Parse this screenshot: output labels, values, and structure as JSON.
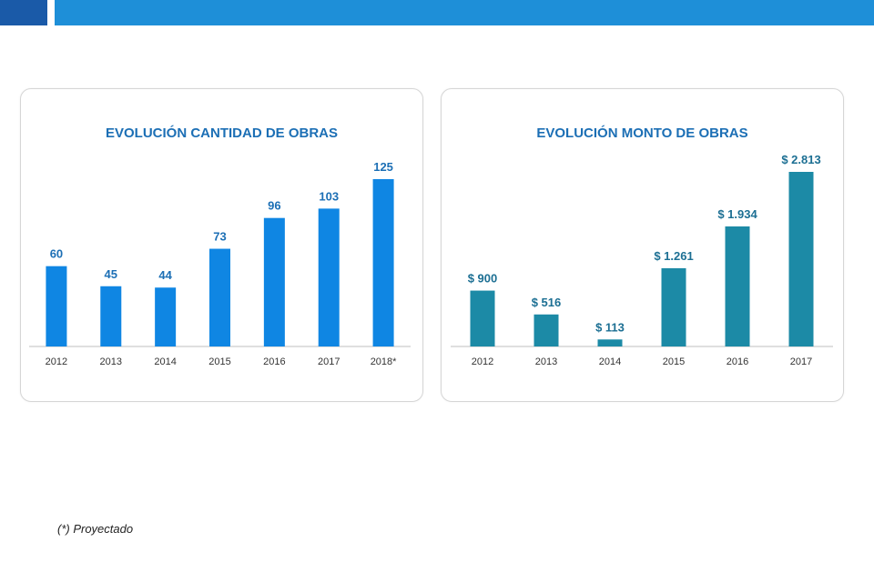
{
  "header": {
    "left_color": "#1a5aa8",
    "right_color": "#1e8fd8"
  },
  "footnote": "(*) Proyectado",
  "chart_data": [
    {
      "type": "bar",
      "title": "EVOLUCIÓN CANTIDAD DE OBRAS",
      "categories": [
        "2012",
        "2013",
        "2014",
        "2015",
        "2016",
        "2017",
        "2018*"
      ],
      "values": [
        60,
        45,
        44,
        73,
        96,
        103,
        125
      ],
      "labels": [
        "60",
        "45",
        "44",
        "73",
        "96",
        "103",
        "125"
      ],
      "bar_color": "#0f86e3",
      "label_color": "#1c6fb5",
      "ylim": [
        0,
        125
      ],
      "grid": false,
      "xlabel": "",
      "ylabel": ""
    },
    {
      "type": "bar",
      "title": "EVOLUCIÓN MONTO DE OBRAS",
      "categories": [
        "2012",
        "2013",
        "2014",
        "2015",
        "2016",
        "2017"
      ],
      "values": [
        900,
        516,
        113,
        1261,
        1934,
        2813
      ],
      "labels": [
        "$ 900",
        "$ 516",
        "$ 113",
        "$ 1.261",
        "$ 1.934",
        "$ 2.813"
      ],
      "bar_color": "#1c8aa6",
      "label_color": "#1c6f93",
      "ylim": [
        0,
        2813
      ],
      "grid": false,
      "xlabel": "",
      "ylabel": ""
    }
  ]
}
